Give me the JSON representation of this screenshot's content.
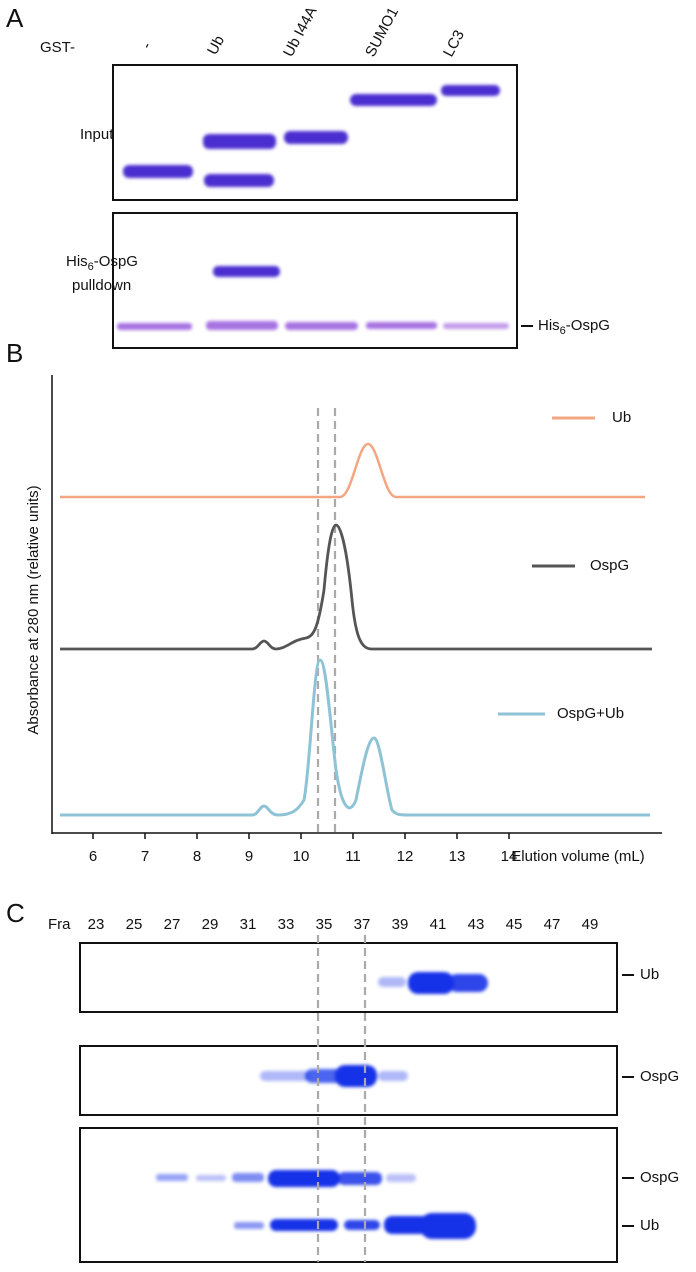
{
  "panel_a": {
    "label": "A",
    "gst_prefix": "GST-",
    "lanes": [
      "-",
      "Ub",
      "Ub I44A",
      "SUMO1",
      "LC3"
    ],
    "input_label": "Input",
    "pulldown_label": {
      "prefix": "His",
      "sub": "6",
      "suffix": "-OspG",
      "line2": "pulldown"
    },
    "marker_label": {
      "prefix": "His",
      "sub": "6",
      "suffix": "-OspG"
    }
  },
  "panel_b": {
    "label": "B",
    "y_axis_label": "Absorbance at 280 nm  (relative units)",
    "x_axis_label": "Elution volume (mL)",
    "x_ticks": [
      6,
      7,
      8,
      9,
      10,
      11,
      12,
      13,
      14
    ],
    "legend": [
      "Ub",
      "OspG",
      "OspG+Ub"
    ]
  },
  "panel_c": {
    "label": "C",
    "fraction_prefix": "Fra",
    "fractions": [
      23,
      25,
      27,
      29,
      31,
      33,
      35,
      37,
      39,
      41,
      43,
      45,
      47,
      49
    ],
    "gels": [
      {
        "labels": [
          "Ub"
        ]
      },
      {
        "labels": [
          "OspG"
        ]
      },
      {
        "labels": [
          "OspG",
          "Ub"
        ]
      }
    ]
  }
}
